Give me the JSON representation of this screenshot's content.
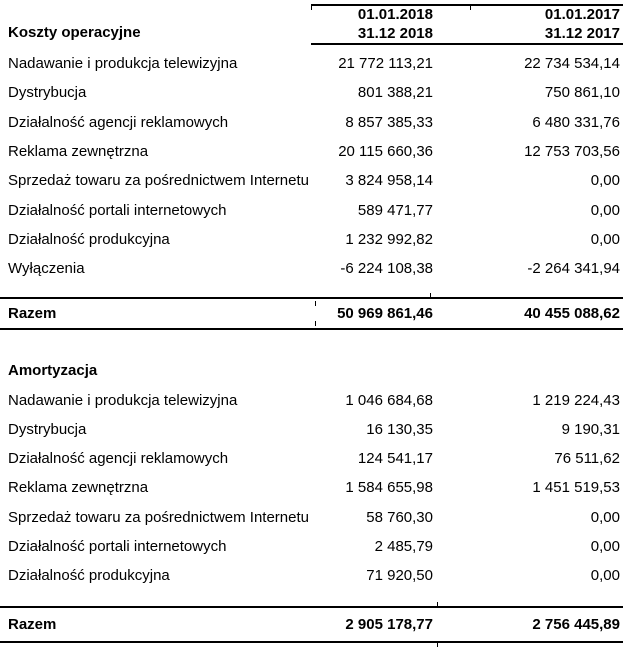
{
  "colors": {
    "text": "#000000",
    "border": "#000000",
    "background": "#ffffff"
  },
  "table": {
    "col_headers": {
      "period_2018_line1": "01.01.2018",
      "period_2018_line2": "31.12 2018",
      "period_2017_line1": "01.01.2017",
      "period_2017_line2": "31.12 2017"
    },
    "sections": [
      {
        "title": "Koszty operacyjne",
        "rows": [
          {
            "label": "Nadawanie i produkcja telewizyjna",
            "v2018": "21 772 113,21",
            "v2017": "22 734 534,14"
          },
          {
            "label": "Dystrybucja",
            "v2018": "801 388,21",
            "v2017": "750 861,10"
          },
          {
            "label": "Działalność agencji reklamowych",
            "v2018": "8 857 385,33",
            "v2017": "6 480 331,76"
          },
          {
            "label": "Reklama zewnętrzna",
            "v2018": "20 115 660,36",
            "v2017": "12 753 703,56"
          },
          {
            "label": "Sprzedaż towaru za pośrednictwem Internetu",
            "v2018": "3 824 958,14",
            "v2017": "0,00"
          },
          {
            "label": "Działalność portali internetowych",
            "v2018": "589 471,77",
            "v2017": "0,00"
          },
          {
            "label": "Działalność produkcyjna",
            "v2018": "1 232 992,82",
            "v2017": "0,00"
          },
          {
            "label": "Wyłączenia",
            "v2018": "-6 224 108,38",
            "v2017": "-2 264 341,94"
          }
        ],
        "total": {
          "label": "Razem",
          "v2018": "50 969 861,46",
          "v2017": "40 455 088,62"
        }
      },
      {
        "title": "Amortyzacja",
        "rows": [
          {
            "label": "Nadawanie i produkcja telewizyjna",
            "v2018": "1 046 684,68",
            "v2017": "1 219 224,43"
          },
          {
            "label": "Dystrybucja",
            "v2018": "16 130,35",
            "v2017": "9 190,31"
          },
          {
            "label": "Działalność agencji reklamowych",
            "v2018": "124 541,17",
            "v2017": "76 511,62"
          },
          {
            "label": "Reklama zewnętrzna",
            "v2018": "1 584 655,98",
            "v2017": "1 451 519,53"
          },
          {
            "label": "Sprzedaż towaru za pośrednictwem Internetu",
            "v2018": "58 760,30",
            "v2017": "0,00"
          },
          {
            "label": "Działalność portali internetowych",
            "v2018": "2 485,79",
            "v2017": "0,00"
          },
          {
            "label": "Działalność produkcyjna",
            "v2018": "71 920,50",
            "v2017": "0,00"
          }
        ],
        "total": {
          "label": "Razem",
          "v2018": "2 905 178,77",
          "v2017": "2 756 445,89"
        }
      }
    ]
  }
}
